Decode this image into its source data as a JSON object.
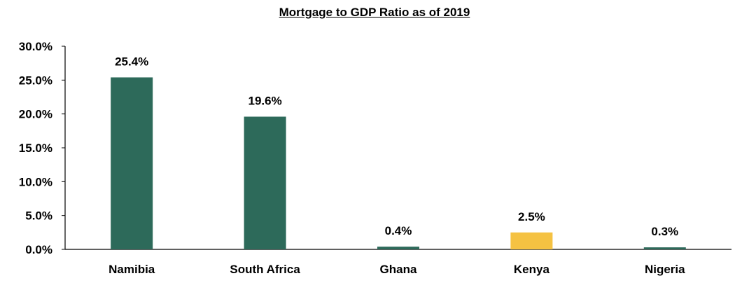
{
  "chart_data": {
    "type": "bar",
    "title": "Mortgage to GDP Ratio as of 2019",
    "categories": [
      "Namibia",
      "South Africa",
      "Ghana",
      "Kenya",
      "Nigeria"
    ],
    "values": [
      25.4,
      19.6,
      0.4,
      2.5,
      0.3
    ],
    "data_labels": [
      "25.4%",
      "19.6%",
      "0.4%",
      "2.5%",
      "0.3%"
    ],
    "bar_colors": [
      "#2D6A5A",
      "#2D6A5A",
      "#2D6A5A",
      "#F5C242",
      "#2D6A5A"
    ],
    "ylim": [
      0,
      30
    ],
    "yticks": [
      0,
      5,
      10,
      15,
      20,
      25,
      30
    ],
    "ytick_labels": [
      "0.0%",
      "5.0%",
      "10.0%",
      "15.0%",
      "20.0%",
      "25.0%",
      "30.0%"
    ],
    "xlabel": "",
    "ylabel": "",
    "grid": false,
    "legend": "none"
  }
}
